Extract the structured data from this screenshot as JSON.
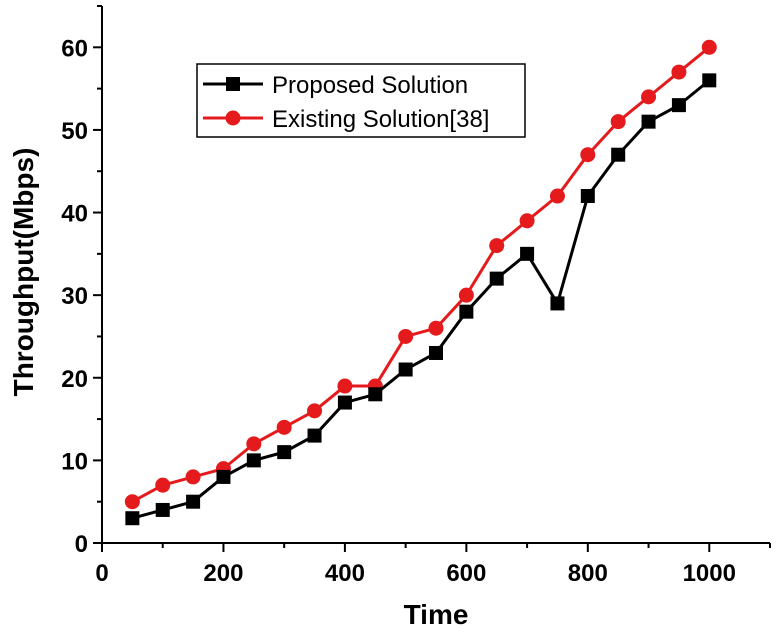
{
  "chart_data": {
    "type": "line",
    "xlabel": "Time",
    "ylabel": "Throughput(Mbps)",
    "xlim": [
      0,
      1100
    ],
    "ylim": [
      0,
      65
    ],
    "xticks": [
      0,
      200,
      400,
      600,
      800,
      1000
    ],
    "yticks": [
      0,
      10,
      20,
      30,
      40,
      50,
      60
    ],
    "x": [
      50,
      100,
      150,
      200,
      250,
      300,
      350,
      400,
      450,
      500,
      550,
      600,
      650,
      700,
      750,
      800,
      850,
      900,
      950,
      1000
    ],
    "series": [
      {
        "name": "Proposed Solution",
        "marker": "square",
        "color": "#000000",
        "values": [
          3,
          4,
          5,
          8,
          10,
          11,
          13,
          17,
          18,
          21,
          23,
          28,
          32,
          35,
          29,
          42,
          47,
          51,
          53,
          56
        ]
      },
      {
        "name": "Existing Solution[38]",
        "marker": "circle",
        "color": "#e41a1c",
        "values": [
          5,
          7,
          8,
          9,
          12,
          14,
          16,
          19,
          19,
          25,
          26,
          30,
          36,
          39,
          42,
          47,
          51,
          54,
          57,
          60
        ]
      }
    ],
    "legend_position": "top-left",
    "grid": false
  }
}
